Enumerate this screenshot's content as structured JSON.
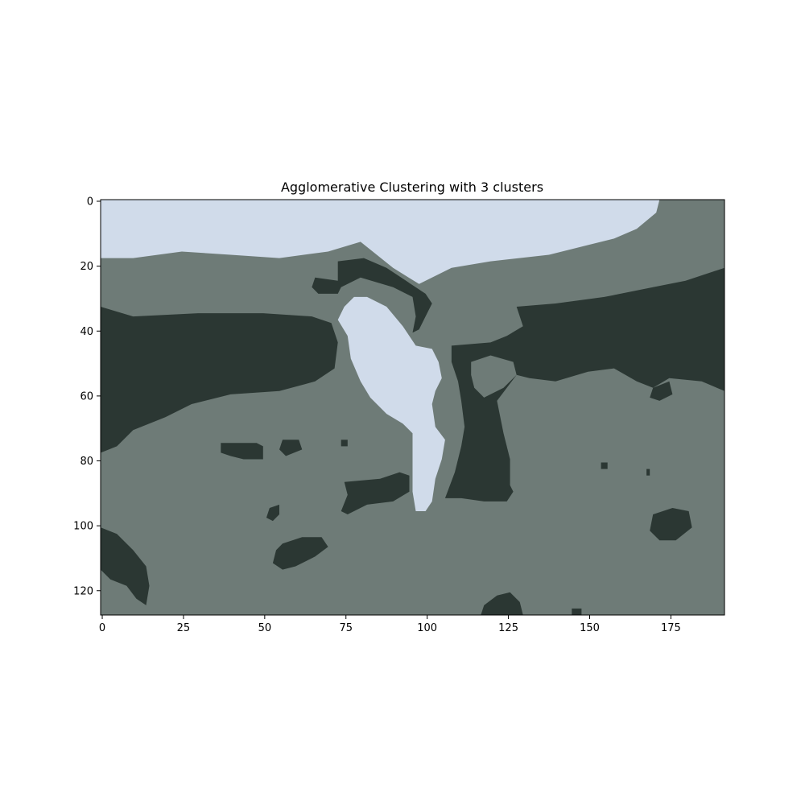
{
  "chart_data": {
    "type": "heatmap",
    "title": "Agglomerative Clustering with 3 clusters",
    "xlabel": "",
    "ylabel": "",
    "grid": false,
    "legend": "none",
    "image_shape": {
      "rows": 128,
      "cols": 192
    },
    "xlim": [
      -0.5,
      191.5
    ],
    "ylim": [
      127.5,
      -0.5
    ],
    "x_ticks": [
      0,
      25,
      50,
      75,
      100,
      125,
      150,
      175
    ],
    "y_ticks": [
      0,
      20,
      40,
      60,
      80,
      100,
      120
    ],
    "clusters": [
      {
        "label": 0,
        "color": "#6e7b77"
      },
      {
        "label": 1,
        "color": "#2b3733"
      },
      {
        "label": 2,
        "color": "#d0dbea"
      }
    ],
    "regions": [
      {
        "cluster": 2,
        "points": [
          [
            0,
            0
          ],
          [
            172,
            0
          ],
          [
            171,
            4
          ],
          [
            165,
            9
          ],
          [
            158,
            12
          ],
          [
            150,
            14
          ],
          [
            138,
            17
          ],
          [
            120,
            19
          ],
          [
            108,
            21
          ],
          [
            98,
            26
          ],
          [
            90,
            21
          ],
          [
            80,
            13
          ],
          [
            70,
            16
          ],
          [
            55,
            18
          ],
          [
            40,
            17
          ],
          [
            25,
            16
          ],
          [
            10,
            18
          ],
          [
            0,
            18
          ]
        ]
      },
      {
        "cluster": 1,
        "points": [
          [
            0,
            33
          ],
          [
            10,
            36
          ],
          [
            30,
            35
          ],
          [
            50,
            35
          ],
          [
            65,
            36
          ],
          [
            71,
            38
          ],
          [
            73,
            44
          ],
          [
            72,
            52
          ],
          [
            66,
            56
          ],
          [
            55,
            59
          ],
          [
            40,
            60
          ],
          [
            28,
            63
          ],
          [
            20,
            67
          ],
          [
            10,
            71
          ],
          [
            5,
            76
          ],
          [
            0,
            78
          ]
        ]
      },
      {
        "cluster": 1,
        "points": [
          [
            73,
            19
          ],
          [
            81,
            18
          ],
          [
            88,
            21
          ],
          [
            94,
            25
          ],
          [
            100,
            29
          ],
          [
            102,
            32
          ],
          [
            100,
            36
          ],
          [
            98,
            40
          ],
          [
            96,
            41
          ],
          [
            97,
            36
          ],
          [
            96,
            30
          ],
          [
            90,
            27
          ],
          [
            80,
            24
          ],
          [
            74,
            27
          ],
          [
            73,
            29
          ],
          [
            67,
            29
          ],
          [
            65,
            27
          ],
          [
            66,
            24
          ],
          [
            73,
            25
          ]
        ]
      },
      {
        "cluster": 1,
        "points": [
          [
            108,
            45
          ],
          [
            120,
            44
          ],
          [
            125,
            42
          ],
          [
            130,
            39
          ],
          [
            128,
            33
          ],
          [
            140,
            32
          ],
          [
            155,
            30
          ],
          [
            170,
            27
          ],
          [
            180,
            25
          ],
          [
            192,
            21
          ],
          [
            192,
            59
          ],
          [
            185,
            56
          ],
          [
            175,
            55
          ],
          [
            170,
            58
          ],
          [
            165,
            56
          ],
          [
            158,
            52
          ],
          [
            150,
            53
          ],
          [
            140,
            56
          ],
          [
            132,
            55
          ],
          [
            128,
            54
          ],
          [
            125,
            58
          ],
          [
            122,
            62
          ],
          [
            124,
            72
          ],
          [
            126,
            80
          ],
          [
            126,
            88
          ],
          [
            127,
            90
          ],
          [
            125,
            93
          ],
          [
            118,
            93
          ],
          [
            111,
            92
          ],
          [
            106,
            92
          ],
          [
            109,
            84
          ],
          [
            111,
            76
          ],
          [
            112,
            70
          ],
          [
            111,
            62
          ],
          [
            110,
            56
          ],
          [
            108,
            50
          ]
        ]
      },
      {
        "cluster": 0,
        "points": [
          [
            114,
            50
          ],
          [
            120,
            48
          ],
          [
            127,
            50
          ],
          [
            128,
            54
          ],
          [
            124,
            58
          ],
          [
            118,
            61
          ],
          [
            115,
            58
          ],
          [
            114,
            54
          ]
        ]
      },
      {
        "cluster": 1,
        "points": [
          [
            170,
            58
          ],
          [
            175,
            56
          ],
          [
            176,
            60
          ],
          [
            172,
            62
          ],
          [
            169,
            61
          ]
        ]
      },
      {
        "cluster": 2,
        "points": [
          [
            75,
            33
          ],
          [
            78,
            30
          ],
          [
            82,
            30
          ],
          [
            88,
            33
          ],
          [
            93,
            39
          ],
          [
            97,
            45
          ],
          [
            102,
            46
          ],
          [
            104,
            50
          ],
          [
            105,
            55
          ],
          [
            103,
            59
          ],
          [
            102,
            63
          ],
          [
            103,
            70
          ],
          [
            106,
            74
          ],
          [
            105,
            80
          ],
          [
            103,
            86
          ],
          [
            102,
            93
          ],
          [
            100,
            96
          ],
          [
            97,
            96
          ],
          [
            96,
            90
          ],
          [
            96,
            78
          ],
          [
            96,
            72
          ],
          [
            93,
            69
          ],
          [
            88,
            66
          ],
          [
            83,
            61
          ],
          [
            80,
            56
          ],
          [
            77,
            49
          ],
          [
            76,
            42
          ],
          [
            73,
            37
          ]
        ]
      },
      {
        "cluster": 1,
        "points": [
          [
            75,
            87
          ],
          [
            86,
            86
          ],
          [
            92,
            84
          ],
          [
            95,
            85
          ],
          [
            95,
            90
          ],
          [
            90,
            93
          ],
          [
            82,
            94
          ],
          [
            76,
            97
          ],
          [
            74,
            96
          ],
          [
            76,
            91
          ]
        ]
      },
      {
        "cluster": 1,
        "points": [
          [
            37,
            75
          ],
          [
            42,
            75
          ],
          [
            48,
            75
          ],
          [
            50,
            76
          ],
          [
            50,
            80
          ],
          [
            44,
            80
          ],
          [
            40,
            79
          ],
          [
            37,
            78
          ]
        ]
      },
      {
        "cluster": 1,
        "points": [
          [
            56,
            74
          ],
          [
            61,
            74
          ],
          [
            62,
            77
          ],
          [
            57,
            79
          ],
          [
            55,
            77
          ]
        ]
      },
      {
        "cluster": 1,
        "points": [
          [
            74,
            74
          ],
          [
            76,
            74
          ],
          [
            76,
            76
          ],
          [
            74,
            76
          ]
        ]
      },
      {
        "cluster": 1,
        "points": [
          [
            52,
            95
          ],
          [
            55,
            94
          ],
          [
            55,
            97
          ],
          [
            53,
            99
          ],
          [
            51,
            98
          ]
        ]
      },
      {
        "cluster": 1,
        "points": [
          [
            56,
            106
          ],
          [
            62,
            104
          ],
          [
            68,
            104
          ],
          [
            70,
            107
          ],
          [
            66,
            110
          ],
          [
            60,
            113
          ],
          [
            56,
            114
          ],
          [
            53,
            112
          ],
          [
            54,
            108
          ]
        ]
      },
      {
        "cluster": 1,
        "points": [
          [
            0,
            101
          ],
          [
            5,
            103
          ],
          [
            10,
            108
          ],
          [
            14,
            113
          ],
          [
            15,
            119
          ],
          [
            14,
            125
          ],
          [
            11,
            123
          ],
          [
            8,
            119
          ],
          [
            3,
            117
          ],
          [
            0,
            114
          ]
        ]
      },
      {
        "cluster": 1,
        "points": [
          [
            170,
            97
          ],
          [
            176,
            95
          ],
          [
            181,
            96
          ],
          [
            182,
            101
          ],
          [
            177,
            105
          ],
          [
            172,
            105
          ],
          [
            169,
            102
          ]
        ]
      },
      {
        "cluster": 1,
        "points": [
          [
            118,
            125
          ],
          [
            122,
            122
          ],
          [
            126,
            121
          ],
          [
            129,
            124
          ],
          [
            130,
            128
          ],
          [
            117,
            128
          ]
        ]
      },
      {
        "cluster": 1,
        "points": [
          [
            145,
            126
          ],
          [
            148,
            126
          ],
          [
            148,
            128
          ],
          [
            145,
            128
          ]
        ]
      },
      {
        "cluster": 1,
        "points": [
          [
            154,
            81
          ],
          [
            156,
            81
          ],
          [
            156,
            83
          ],
          [
            154,
            83
          ]
        ]
      },
      {
        "cluster": 1,
        "points": [
          [
            168,
            83
          ],
          [
            169,
            83
          ],
          [
            169,
            85
          ],
          [
            168,
            85
          ]
        ]
      }
    ]
  }
}
